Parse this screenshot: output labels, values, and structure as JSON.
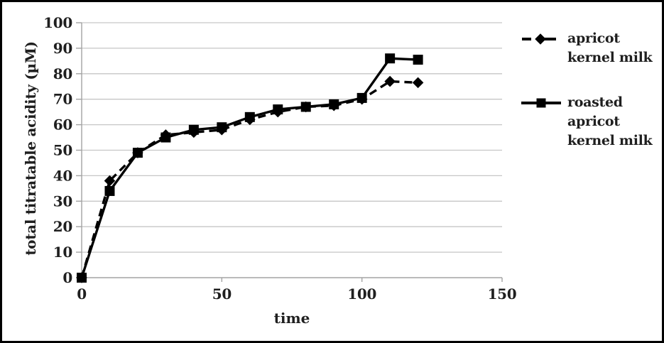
{
  "chart_data": {
    "type": "line",
    "title": "",
    "xlabel": "time",
    "ylabel": "total titratable acidity (µM)",
    "x": [
      0,
      10,
      20,
      30,
      40,
      50,
      60,
      70,
      80,
      90,
      100,
      110,
      120
    ],
    "series": [
      {
        "name": "apricot kernel milk",
        "marker": "diamond",
        "line": "dashed",
        "values": [
          0,
          38,
          49,
          56,
          57,
          58,
          62,
          65,
          67,
          67.5,
          70,
          77,
          76.5
        ]
      },
      {
        "name": "roasted apricot kernel milk",
        "marker": "square",
        "line": "solid",
        "values": [
          0,
          34,
          49,
          55,
          58,
          59,
          63,
          66,
          67,
          68,
          70.5,
          86,
          85.5
        ]
      }
    ],
    "xlim": [
      0,
      150
    ],
    "ylim": [
      0,
      100
    ],
    "x_ticks": [
      0,
      50,
      100,
      150
    ],
    "y_ticks": [
      0,
      10,
      20,
      30,
      40,
      50,
      60,
      70,
      80,
      90,
      100
    ],
    "grid": "horizontal",
    "legend_position": "right",
    "colors": {
      "series": "#000000",
      "grid": "#c6c6c6",
      "axis": "#a3a3a3",
      "text": "#1f1f1f",
      "background": "#ffffff",
      "border": "#000000"
    }
  }
}
